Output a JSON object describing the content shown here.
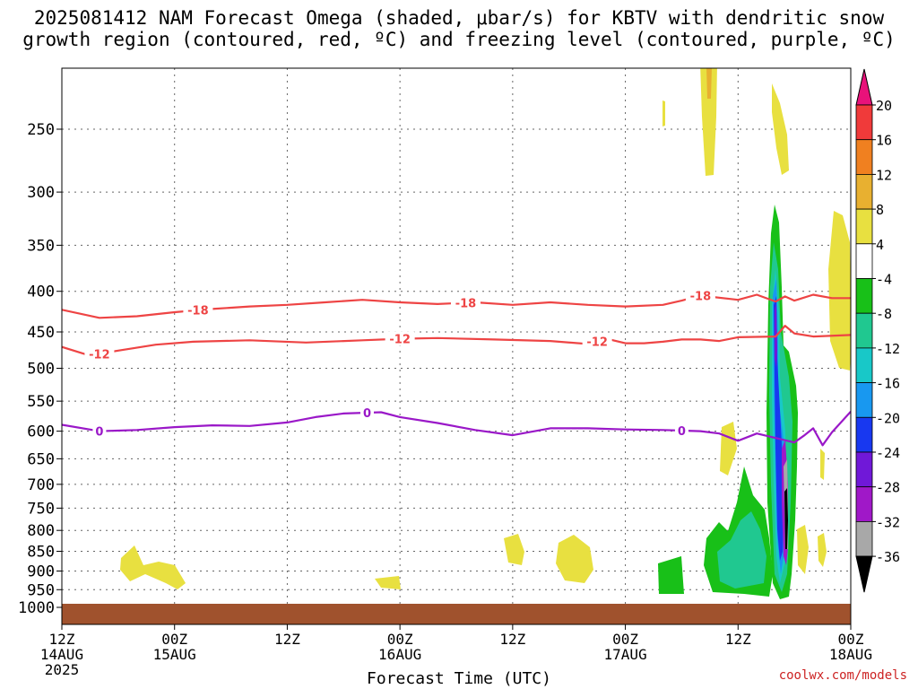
{
  "title": {
    "line1": "2025081412 NAM Forecast Omega (shaded, μbar/s) for KBTV with dendritic snow",
    "line2": "growth region (contoured, red, ºC) and freezing level (contoured, purple, ºC)"
  },
  "credit": "coolwx.com/models",
  "chart_data": {
    "type": "heatmap",
    "xlabel": "Forecast Time (UTC)",
    "x_ticks": [
      {
        "hour": 0,
        "line1": "12Z",
        "line2": "14AUG",
        "line3": "2025"
      },
      {
        "hour": 12,
        "line1": "00Z",
        "line2": "15AUG",
        "line3": ""
      },
      {
        "hour": 24,
        "line1": "12Z",
        "line2": "",
        "line3": ""
      },
      {
        "hour": 36,
        "line1": "00Z",
        "line2": "16AUG",
        "line3": ""
      },
      {
        "hour": 48,
        "line1": "12Z",
        "line2": "",
        "line3": ""
      },
      {
        "hour": 60,
        "line1": "00Z",
        "line2": "17AUG",
        "line3": ""
      },
      {
        "hour": 72,
        "line1": "12Z",
        "line2": "",
        "line3": ""
      },
      {
        "hour": 84,
        "line1": "00Z",
        "line2": "18AUG",
        "line3": ""
      }
    ],
    "xlim": [
      0,
      84
    ],
    "y_ticks": [
      250,
      300,
      350,
      400,
      450,
      500,
      550,
      600,
      650,
      700,
      750,
      800,
      850,
      900,
      950,
      1000
    ],
    "ylim": [
      200,
      1020
    ],
    "y_scale": "log",
    "grid": true,
    "colorbar": {
      "labels": [
        20,
        16,
        12,
        8,
        4,
        -4,
        -8,
        -12,
        -16,
        -20,
        -24,
        -28,
        -32,
        -36
      ],
      "colors": [
        "#e8127a",
        "#f03a3a",
        "#f08020",
        "#e8b030",
        "#e8e040",
        "#ffffff",
        "#18c018",
        "#20c890",
        "#18c8c8",
        "#1898f0",
        "#1838f0",
        "#7018d8",
        "#a018c8",
        "#a8a8a8",
        "#000000"
      ]
    },
    "contours": [
      {
        "label": "-18",
        "color": "#ee4444",
        "points": [
          [
            0,
            422
          ],
          [
            4,
            432
          ],
          [
            8,
            430
          ],
          [
            12,
            425
          ],
          [
            16,
            421
          ],
          [
            20,
            418
          ],
          [
            24,
            416
          ],
          [
            28,
            413
          ],
          [
            32,
            410
          ],
          [
            36,
            413
          ],
          [
            40,
            415
          ],
          [
            44,
            413
          ],
          [
            48,
            416
          ],
          [
            52,
            413
          ],
          [
            56,
            416
          ],
          [
            60,
            418
          ],
          [
            64,
            416
          ],
          [
            66,
            411
          ],
          [
            68,
            405
          ],
          [
            72,
            410
          ],
          [
            74,
            404
          ],
          [
            76,
            412
          ],
          [
            77,
            406
          ],
          [
            78,
            411
          ],
          [
            80,
            404
          ],
          [
            82,
            408
          ],
          [
            84,
            408
          ]
        ],
        "label_hours": [
          14.5,
          43,
          68
        ]
      },
      {
        "label": "-12",
        "color": "#ee4444",
        "points": [
          [
            0,
            470
          ],
          [
            3,
            482
          ],
          [
            6,
            475
          ],
          [
            10,
            467
          ],
          [
            14,
            463
          ],
          [
            20,
            461
          ],
          [
            26,
            464
          ],
          [
            32,
            461
          ],
          [
            36,
            459
          ],
          [
            40,
            458
          ],
          [
            46,
            460
          ],
          [
            52,
            462
          ],
          [
            56,
            466
          ],
          [
            58,
            459
          ],
          [
            60,
            465
          ],
          [
            62,
            465
          ],
          [
            64,
            463
          ],
          [
            66,
            460
          ],
          [
            68,
            460
          ],
          [
            70,
            462
          ],
          [
            72,
            457
          ],
          [
            76,
            456
          ],
          [
            77,
            442
          ],
          [
            78,
            452
          ],
          [
            80,
            456
          ],
          [
            84,
            454
          ]
        ],
        "label_hours": [
          4,
          36,
          57
        ]
      },
      {
        "label": "0",
        "color": "#9a18c8",
        "points": [
          [
            0,
            589
          ],
          [
            4,
            600
          ],
          [
            8,
            598
          ],
          [
            12,
            593
          ],
          [
            16,
            590
          ],
          [
            20,
            591
          ],
          [
            24,
            585
          ],
          [
            27,
            576
          ],
          [
            30,
            570
          ],
          [
            34,
            568
          ],
          [
            36,
            576
          ],
          [
            40,
            586
          ],
          [
            44,
            598
          ],
          [
            48,
            607
          ],
          [
            52,
            595
          ],
          [
            56,
            595
          ],
          [
            60,
            597
          ],
          [
            64,
            598
          ],
          [
            68,
            600
          ],
          [
            70,
            604
          ],
          [
            72,
            617
          ],
          [
            74,
            604
          ],
          [
            76,
            612
          ],
          [
            78,
            620
          ],
          [
            79,
            608
          ],
          [
            80,
            595
          ],
          [
            81,
            625
          ],
          [
            82,
            602
          ],
          [
            84,
            567
          ]
        ],
        "label_hours": [
          4,
          32.5,
          66
        ]
      }
    ]
  }
}
